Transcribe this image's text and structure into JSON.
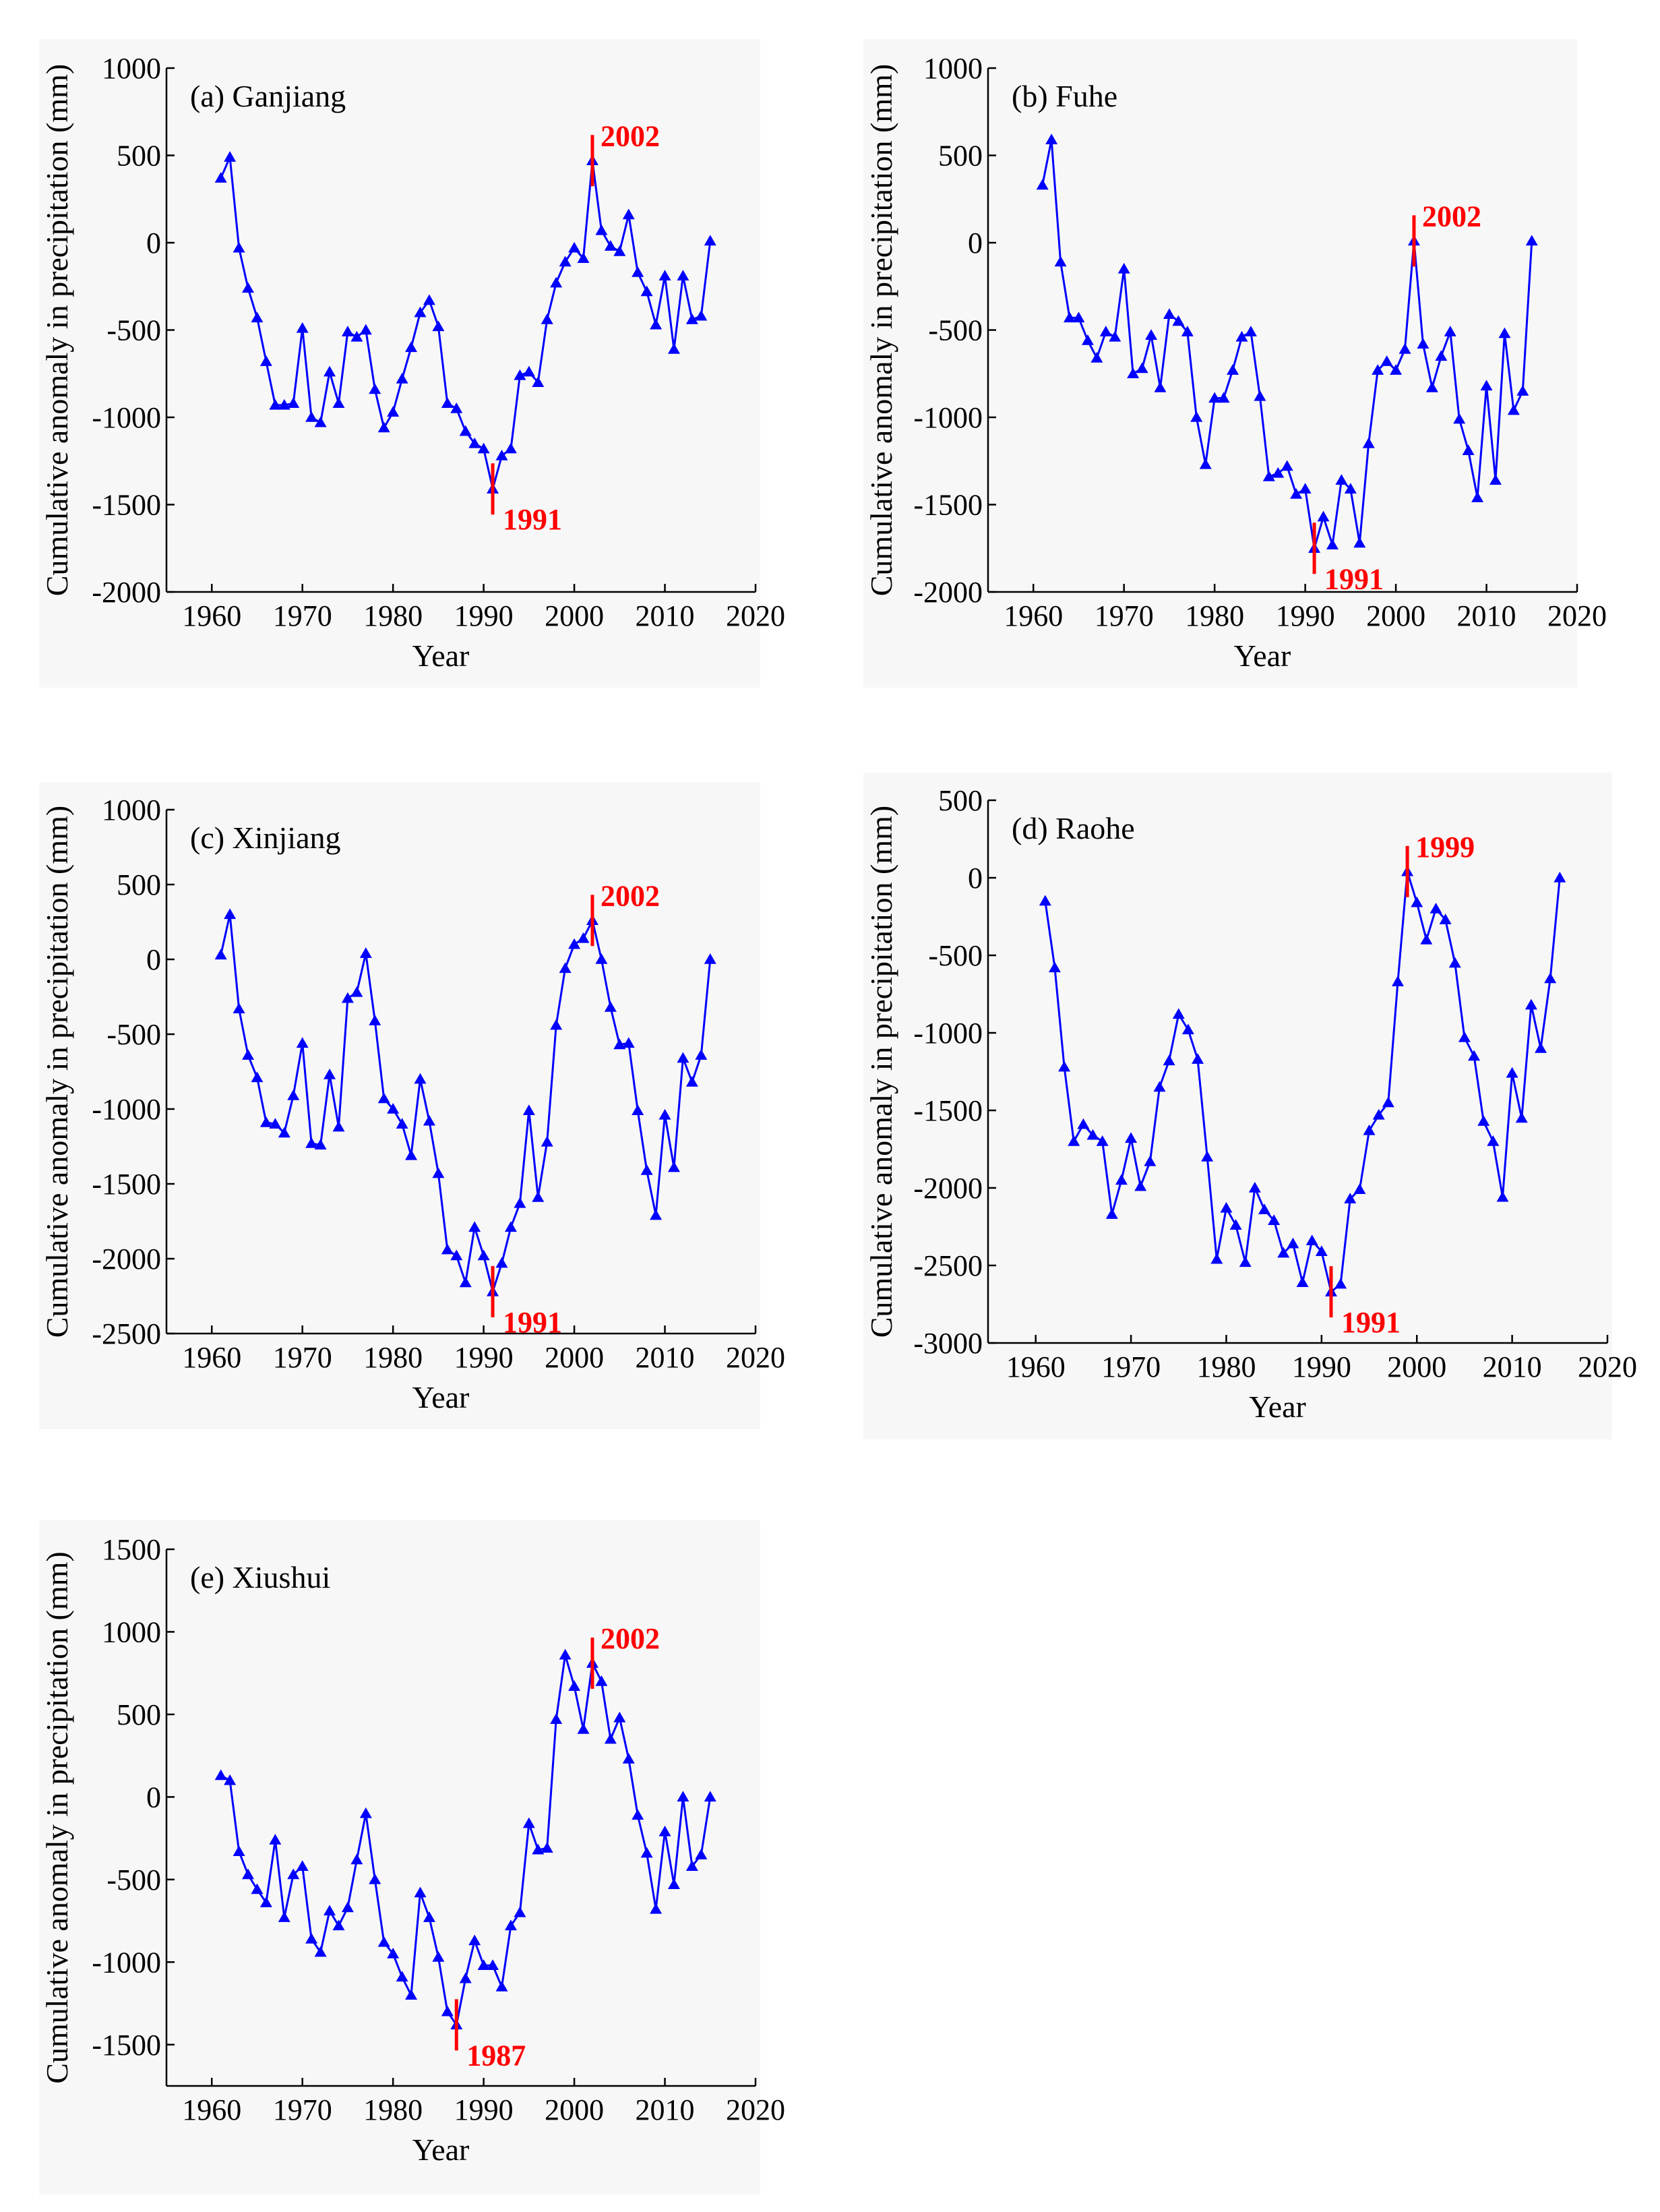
{
  "colors": {
    "series": "#0000ff",
    "change_point": "#ff0000",
    "axis": "#000000",
    "panel_background": "#f7f7f7"
  },
  "chart_data": [
    {
      "id": "a",
      "type": "line",
      "marker": "triangle",
      "title": "(a) Ganjiang",
      "xlabel": "Year",
      "ylabel": "Cumulative anomaly in precipitation (mm)",
      "xlim": [
        1955,
        2020
      ],
      "ylim": [
        -2000,
        1000
      ],
      "xticks": [
        1960,
        1970,
        1980,
        1990,
        2000,
        2010,
        2020
      ],
      "yticks": [
        -2000,
        -1500,
        -1000,
        -500,
        0,
        500,
        1000
      ],
      "years_start": 1961,
      "values": [
        370,
        490,
        -30,
        -260,
        -430,
        -680,
        -930,
        -930,
        -920,
        -490,
        -1000,
        -1030,
        -740,
        -920,
        -510,
        -540,
        -500,
        -840,
        -1060,
        -970,
        -780,
        -600,
        -400,
        -330,
        -480,
        -920,
        -950,
        -1080,
        -1150,
        -1180,
        -1410,
        -1220,
        -1180,
        -760,
        -740,
        -800,
        -440,
        -230,
        -110,
        -30,
        -90,
        470,
        70,
        -20,
        -50,
        160,
        -170,
        -280,
        -470,
        -190,
        -610,
        -190,
        -440,
        -420,
        10
      ],
      "change_points": [
        {
          "year": 1991,
          "label": "1991"
        },
        {
          "year": 2002,
          "label": "2002"
        }
      ]
    },
    {
      "id": "b",
      "type": "line",
      "marker": "triangle",
      "title": "(b) Fuhe",
      "xlabel": "Year",
      "ylabel": "Cumulative anomaly in precipitation (mm)",
      "xlim": [
        1955,
        2020
      ],
      "ylim": [
        -2000,
        1000
      ],
      "xticks": [
        1960,
        1970,
        1980,
        1990,
        2000,
        2010,
        2020
      ],
      "yticks": [
        -2000,
        -1500,
        -1000,
        -500,
        0,
        500,
        1000
      ],
      "years_start": 1961,
      "values": [
        330,
        590,
        -110,
        -430,
        -430,
        -560,
        -660,
        -510,
        -540,
        -150,
        -750,
        -720,
        -530,
        -830,
        -410,
        -450,
        -510,
        -1000,
        -1270,
        -890,
        -890,
        -730,
        -540,
        -510,
        -880,
        -1340,
        -1320,
        -1280,
        -1440,
        -1410,
        -1750,
        -1570,
        -1730,
        -1360,
        -1410,
        -1720,
        -1150,
        -730,
        -680,
        -730,
        -610,
        10,
        -580,
        -830,
        -650,
        -510,
        -1010,
        -1190,
        -1460,
        -820,
        -1360,
        -520,
        -960,
        -850,
        10
      ],
      "change_points": [
        {
          "year": 1991,
          "label": "1991"
        },
        {
          "year": 2002,
          "label": "2002"
        }
      ]
    },
    {
      "id": "c",
      "type": "line",
      "marker": "triangle",
      "title": "(c) Xinjiang",
      "xlabel": "Year",
      "ylabel": "Cumulative anomaly in precipitation (mm)",
      "xlim": [
        1955,
        2020
      ],
      "ylim": [
        -2500,
        1000
      ],
      "xticks": [
        1960,
        1970,
        1980,
        1990,
        2000,
        2010,
        2020
      ],
      "yticks": [
        -2500,
        -2000,
        -1500,
        -1000,
        -500,
        0,
        500,
        1000
      ],
      "years_start": 1961,
      "values": [
        30,
        300,
        -330,
        -640,
        -790,
        -1090,
        -1100,
        -1160,
        -910,
        -560,
        -1230,
        -1240,
        -770,
        -1120,
        -260,
        -220,
        40,
        -410,
        -930,
        -1000,
        -1100,
        -1310,
        -800,
        -1080,
        -1430,
        -1940,
        -1980,
        -2160,
        -1790,
        -1980,
        -2220,
        -2030,
        -1790,
        -1630,
        -1010,
        -1590,
        -1220,
        -440,
        -60,
        100,
        140,
        260,
        0,
        -320,
        -570,
        -560,
        -1010,
        -1410,
        -1710,
        -1040,
        -1390,
        -660,
        -820,
        -640,
        0
      ],
      "change_points": [
        {
          "year": 1991,
          "label": "1991"
        },
        {
          "year": 2002,
          "label": "2002"
        }
      ]
    },
    {
      "id": "d",
      "type": "line",
      "marker": "triangle",
      "title": "(d) Raohe",
      "xlabel": "Year",
      "ylabel": "Cumulative anomaly in precipitation (mm)",
      "xlim": [
        1955,
        2020
      ],
      "ylim": [
        -3000,
        500
      ],
      "xticks": [
        1960,
        1970,
        1980,
        1990,
        2000,
        2010,
        2020
      ],
      "yticks": [
        -3000,
        -2500,
        -2000,
        -1500,
        -1000,
        -500,
        0,
        500
      ],
      "years_start": 1961,
      "values": [
        -150,
        -580,
        -1220,
        -1700,
        -1590,
        -1660,
        -1700,
        -2170,
        -1950,
        -1680,
        -1990,
        -1830,
        -1350,
        -1180,
        -880,
        -980,
        -1170,
        -1800,
        -2460,
        -2130,
        -2240,
        -2480,
        -2000,
        -2140,
        -2210,
        -2420,
        -2360,
        -2610,
        -2340,
        -2410,
        -2670,
        -2620,
        -2070,
        -2010,
        -1630,
        -1530,
        -1450,
        -670,
        40,
        -160,
        -400,
        -200,
        -270,
        -550,
        -1030,
        -1150,
        -1570,
        -1700,
        -2060,
        -1260,
        -1550,
        -820,
        -1100,
        -650,
        0
      ],
      "change_points": [
        {
          "year": 1991,
          "label": "1991"
        },
        {
          "year": 1999,
          "label": "1999"
        }
      ]
    },
    {
      "id": "e",
      "type": "line",
      "marker": "triangle",
      "title": "(e) Xiushui",
      "xlabel": "Year",
      "ylabel": "Cumulative anomaly in precipitation (mm)",
      "xlim": [
        1955,
        2020
      ],
      "ylim": [
        -1750,
        1500
      ],
      "xticks": [
        1960,
        1970,
        1980,
        1990,
        2000,
        2010,
        2020
      ],
      "yticks": [
        -1500,
        -1000,
        -500,
        0,
        500,
        1000,
        1500
      ],
      "years_start": 1961,
      "values": [
        130,
        100,
        -330,
        -470,
        -560,
        -640,
        -260,
        -730,
        -470,
        -420,
        -860,
        -940,
        -690,
        -780,
        -670,
        -380,
        -100,
        -500,
        -880,
        -950,
        -1090,
        -1200,
        -580,
        -730,
        -970,
        -1300,
        -1380,
        -1100,
        -870,
        -1020,
        -1020,
        -1150,
        -780,
        -700,
        -160,
        -320,
        -310,
        470,
        860,
        670,
        410,
        810,
        700,
        350,
        480,
        230,
        -110,
        -340,
        -680,
        -210,
        -530,
        0,
        -420,
        -350,
        0
      ],
      "change_points": [
        {
          "year": 1987,
          "label": "1987"
        },
        {
          "year": 2002,
          "label": "2002"
        }
      ]
    }
  ]
}
